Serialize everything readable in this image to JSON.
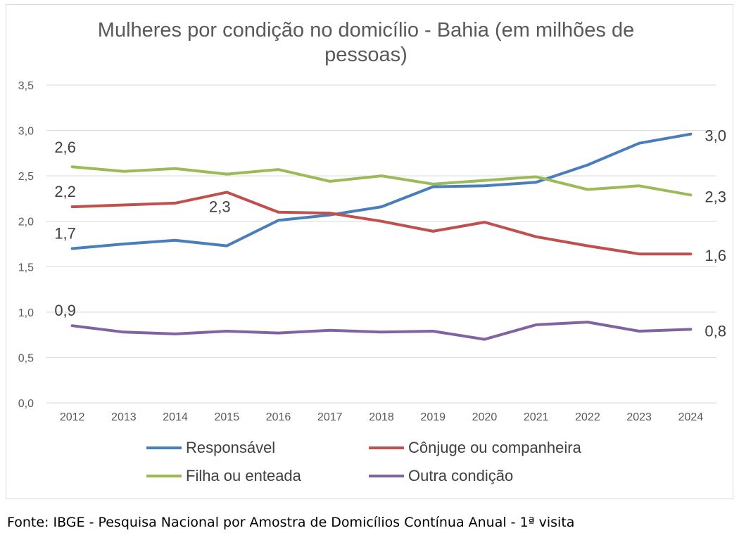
{
  "chart_data": {
    "type": "line",
    "title": "Mulheres por condição no domicílio - Bahia (em milhões de pessoas)",
    "xlabel": "",
    "ylabel": "",
    "ylim": [
      0,
      3.5
    ],
    "yticks": [
      "0,0",
      "0,5",
      "1,0",
      "1,5",
      "2,0",
      "2,5",
      "3,0",
      "3,5"
    ],
    "ytick_values": [
      0,
      0.5,
      1.0,
      1.5,
      2.0,
      2.5,
      3.0,
      3.5
    ],
    "grid": true,
    "legend_position": "bottom",
    "categories": [
      "2012",
      "2013",
      "2014",
      "2015",
      "2016",
      "2017",
      "2018",
      "2019",
      "2020",
      "2021",
      "2022",
      "2023",
      "2024"
    ],
    "series": [
      {
        "name": "Responsável",
        "color": "#4a7ebb",
        "values": [
          1.7,
          1.75,
          1.79,
          1.73,
          2.01,
          2.07,
          2.16,
          2.38,
          2.39,
          2.43,
          2.62,
          2.86,
          2.96
        ],
        "labels": [
          {
            "index": 0,
            "text": "1,7"
          },
          {
            "index": 12,
            "text": "3,0"
          }
        ]
      },
      {
        "name": "Cônjuge ou companheira",
        "color": "#c0504d",
        "values": [
          2.16,
          2.18,
          2.2,
          2.32,
          2.1,
          2.09,
          2.0,
          1.89,
          1.99,
          1.83,
          1.73,
          1.64,
          1.64
        ],
        "labels": [
          {
            "index": 0,
            "text": "2,2"
          },
          {
            "index": 3,
            "text": "2,3"
          },
          {
            "index": 12,
            "text": "1,6"
          }
        ]
      },
      {
        "name": "Filha ou enteada",
        "color": "#9bbb59",
        "values": [
          2.6,
          2.55,
          2.58,
          2.52,
          2.57,
          2.44,
          2.5,
          2.41,
          2.45,
          2.49,
          2.35,
          2.39,
          2.29
        ],
        "labels": [
          {
            "index": 0,
            "text": "2,6"
          },
          {
            "index": 12,
            "text": "2,3"
          }
        ]
      },
      {
        "name": "Outra condição",
        "color": "#8064a2",
        "values": [
          0.85,
          0.78,
          0.76,
          0.79,
          0.77,
          0.8,
          0.78,
          0.79,
          0.7,
          0.86,
          0.89,
          0.79,
          0.81
        ],
        "labels": [
          {
            "index": 0,
            "text": "0,9"
          },
          {
            "index": 12,
            "text": "0,8"
          }
        ]
      }
    ]
  },
  "source": "Fonte: IBGE - Pesquisa Nacional por Amostra de Domicílios Contínua Anual - 1ª visita"
}
